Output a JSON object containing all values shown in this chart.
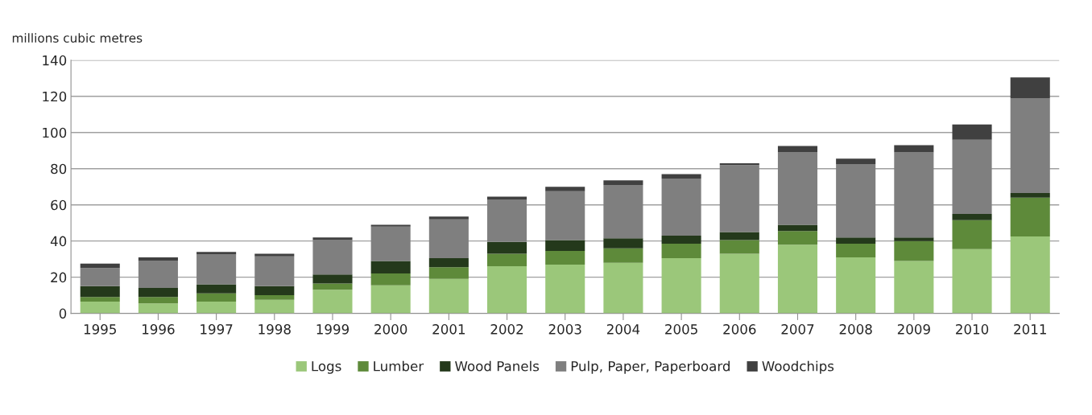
{
  "chart_data": {
    "type": "bar",
    "stacked": true,
    "ylabel": "millions cubic metres",
    "categories": [
      "1995",
      "1996",
      "1997",
      "1998",
      "1999",
      "2000",
      "2001",
      "2002",
      "2003",
      "2004",
      "2005",
      "2006",
      "2007",
      "2008",
      "2009",
      "2010",
      "2011"
    ],
    "series": [
      {
        "name": "Logs",
        "color": "#9bc77a",
        "values": [
          6.5,
          5.5,
          6.5,
          7.5,
          13,
          15.5,
          19,
          26,
          27,
          28,
          30.5,
          33,
          38,
          31,
          29,
          35.5,
          42.5
        ]
      },
      {
        "name": "Lumber",
        "color": "#5e8a3a",
        "values": [
          2.5,
          3.5,
          4.5,
          2.5,
          3.5,
          6.5,
          6.5,
          7,
          7.5,
          8,
          8,
          7.5,
          7.5,
          7.5,
          11,
          16,
          21.5
        ]
      },
      {
        "name": "Wood Panels",
        "color": "#24391b",
        "values": [
          6,
          5,
          5,
          5,
          5,
          7,
          5,
          6.5,
          6,
          5.5,
          4.5,
          4.5,
          3.5,
          3.5,
          2,
          3.5,
          2.5
        ]
      },
      {
        "name": "Pulp, Paper, Paperboard",
        "color": "#7f7f7f",
        "values": [
          10,
          15,
          16.5,
          16.5,
          19,
          19,
          21.5,
          23.5,
          27,
          29.5,
          31.5,
          37,
          40,
          40.5,
          47,
          41,
          52.5
        ]
      },
      {
        "name": "Woodchips",
        "color": "#404040",
        "values": [
          2.5,
          2,
          1.5,
          1.5,
          1.5,
          1,
          1.5,
          1.5,
          2.5,
          2.5,
          2.5,
          1,
          3.5,
          3,
          4,
          8.5,
          11.5
        ]
      }
    ],
    "ylim": [
      0,
      140
    ],
    "yticks": [
      0,
      20,
      40,
      60,
      80,
      100,
      120,
      140
    ],
    "grid": "y",
    "legend": "bottom"
  }
}
